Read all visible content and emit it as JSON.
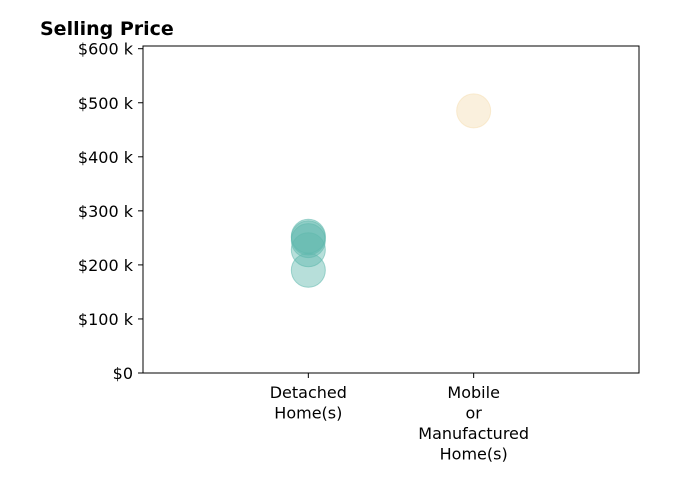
{
  "chart_data": {
    "type": "scatter",
    "title": "Selling Price",
    "xlabel": "",
    "ylabel": "",
    "categories": [
      "Detached\nHome(s)",
      "Mobile\nor\nManufactured\nHome(s)"
    ],
    "xlim": [
      0,
      3
    ],
    "ylim": [
      0,
      605000
    ],
    "yticks": [
      0,
      100000,
      200000,
      300000,
      400000,
      500000,
      600000
    ],
    "ytick_labels": [
      "$0",
      "$100 k",
      "$200 k",
      "$300 k",
      "$400 k",
      "$500 k",
      "$600 k"
    ],
    "grid": false,
    "legend": "none",
    "series": [
      {
        "color": "#5fb8ad",
        "points": [
          {
            "category": 0,
            "y": 190000
          },
          {
            "category": 0,
            "y": 228000
          },
          {
            "category": 0,
            "y": 245000
          },
          {
            "category": 0,
            "y": 250000
          },
          {
            "category": 0,
            "y": 253000
          }
        ]
      },
      {
        "color": "#f5deb3",
        "points": [
          {
            "category": 1,
            "y": 485000
          }
        ]
      }
    ]
  }
}
